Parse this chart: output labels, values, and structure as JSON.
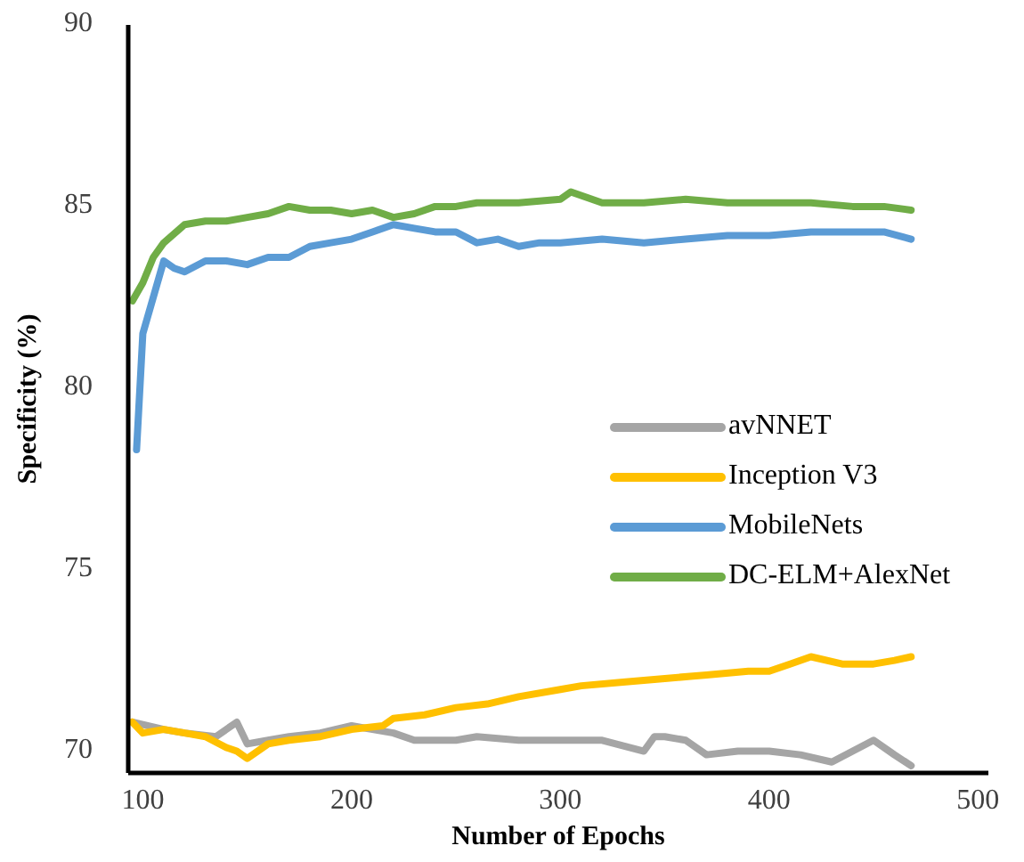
{
  "chart_data": {
    "type": "line",
    "xlabel": "Number of Epochs",
    "ylabel": "Specificity (%)",
    "xlim": [
      93,
      505
    ],
    "xticks": [
      100,
      200,
      300,
      400,
      500
    ],
    "ylim": [
      69.4,
      90
    ],
    "yticks": [
      70,
      75,
      80,
      85,
      90
    ],
    "grid": false,
    "legend": "right",
    "marker": "none",
    "line_style": "solid",
    "series": [
      {
        "name": "avNNET",
        "color": "#a5a5a5",
        "x": [
          95,
          110,
          120,
          135,
          145,
          150,
          160,
          170,
          185,
          200,
          210,
          220,
          230,
          250,
          260,
          280,
          300,
          320,
          340,
          345,
          350,
          360,
          370,
          385,
          400,
          415,
          430,
          440,
          450,
          460,
          468
        ],
        "values": [
          70.8,
          70.6,
          70.5,
          70.4,
          70.8,
          70.2,
          70.3,
          70.4,
          70.5,
          70.7,
          70.6,
          70.5,
          70.3,
          70.3,
          70.4,
          70.3,
          70.3,
          70.3,
          70.0,
          70.4,
          70.4,
          70.3,
          69.9,
          70.0,
          70.0,
          69.9,
          69.7,
          70.0,
          70.3,
          69.9,
          69.6
        ]
      },
      {
        "name": "Inception V3",
        "color": "#ffc000",
        "x": [
          95,
          100,
          110,
          120,
          130,
          140,
          145,
          150,
          160,
          170,
          185,
          200,
          215,
          220,
          235,
          250,
          265,
          280,
          300,
          310,
          330,
          350,
          370,
          390,
          400,
          410,
          420,
          435,
          450,
          460,
          468
        ],
        "values": [
          70.8,
          70.5,
          70.6,
          70.5,
          70.4,
          70.1,
          70.0,
          69.8,
          70.2,
          70.3,
          70.4,
          70.6,
          70.7,
          70.9,
          71.0,
          71.2,
          71.3,
          71.5,
          71.7,
          71.8,
          71.9,
          72.0,
          72.1,
          72.2,
          72.2,
          72.4,
          72.6,
          72.4,
          72.4,
          72.5,
          72.6
        ]
      },
      {
        "name": "MobileNets",
        "color": "#5b9bd5",
        "x": [
          97,
          100,
          105,
          110,
          115,
          120,
          130,
          140,
          150,
          160,
          170,
          180,
          190,
          200,
          210,
          220,
          230,
          240,
          250,
          260,
          270,
          280,
          290,
          300,
          320,
          340,
          360,
          380,
          400,
          420,
          440,
          455,
          468
        ],
        "values": [
          78.3,
          81.5,
          82.5,
          83.5,
          83.3,
          83.2,
          83.5,
          83.5,
          83.4,
          83.6,
          83.6,
          83.9,
          84.0,
          84.1,
          84.3,
          84.5,
          84.4,
          84.3,
          84.3,
          84.0,
          84.1,
          83.9,
          84.0,
          84.0,
          84.1,
          84.0,
          84.1,
          84.2,
          84.2,
          84.3,
          84.3,
          84.3,
          84.1
        ]
      },
      {
        "name": "DC-ELM+AlexNet",
        "color": "#70ad47",
        "x": [
          95,
          100,
          105,
          110,
          120,
          130,
          140,
          150,
          160,
          170,
          180,
          190,
          200,
          210,
          220,
          230,
          240,
          250,
          260,
          280,
          300,
          305,
          320,
          340,
          360,
          380,
          400,
          420,
          440,
          455,
          468
        ],
        "values": [
          82.4,
          82.9,
          83.6,
          84.0,
          84.5,
          84.6,
          84.6,
          84.7,
          84.8,
          85.0,
          84.9,
          84.9,
          84.8,
          84.9,
          84.7,
          84.8,
          85.0,
          85.0,
          85.1,
          85.1,
          85.2,
          85.4,
          85.1,
          85.1,
          85.2,
          85.1,
          85.1,
          85.1,
          85.0,
          85.0,
          84.9
        ]
      }
    ]
  }
}
